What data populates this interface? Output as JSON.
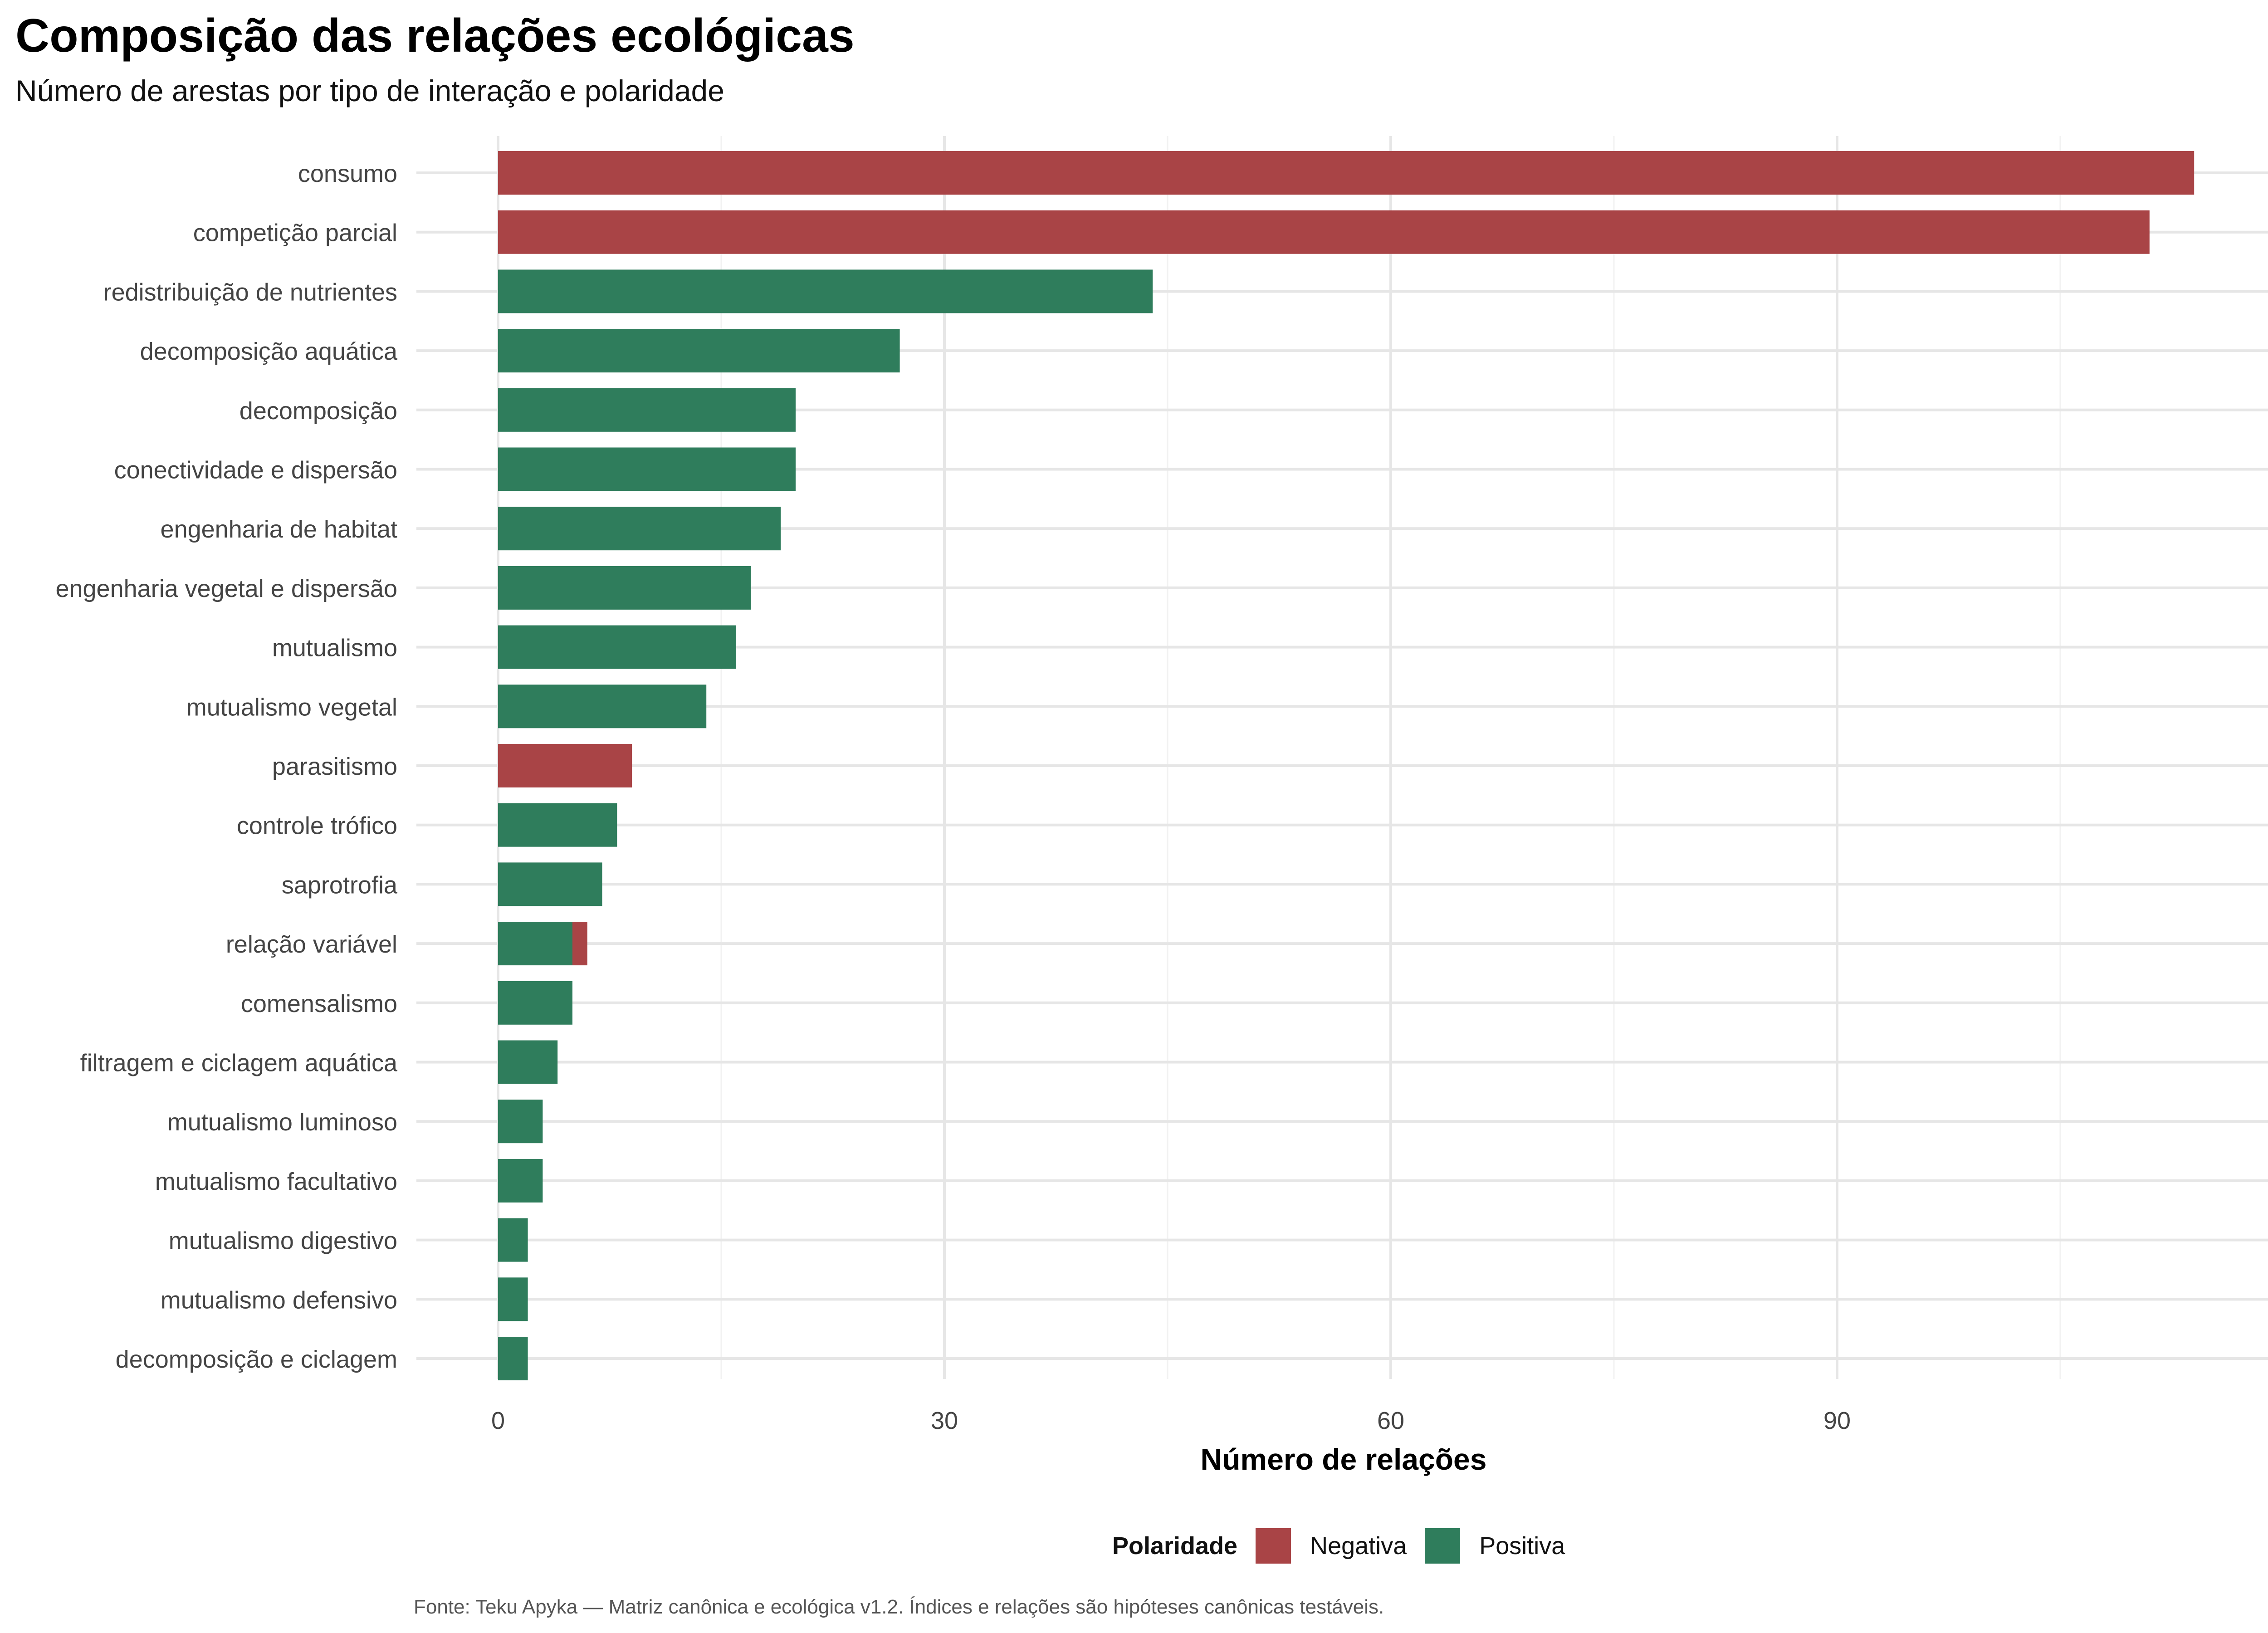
{
  "title": "Composição das relações ecológicas",
  "subtitle": "Número de arestas por tipo de interação e polaridade",
  "caption": "Fonte: Teku Apyka — Matriz canônica e ecológica v1.2. Índices e relações são hipóteses canônicas testáveis.",
  "legend": {
    "title": "Polaridade",
    "items": [
      {
        "label": "Negativa",
        "color": "#a94446"
      },
      {
        "label": "Positiva",
        "color": "#2f7d5c"
      }
    ]
  },
  "chart_data": {
    "type": "bar",
    "orientation": "horizontal",
    "stacked": true,
    "xlabel": "Número de relações",
    "ylabel": "",
    "xlim": [
      -4,
      119
    ],
    "xticks": [
      0,
      30,
      60,
      90
    ],
    "grid": true,
    "legend_position": "bottom",
    "categories": [
      "consumo",
      "competição parcial",
      "redistribuição de nutrientes",
      "decomposição aquática",
      "decomposição",
      "conectividade e dispersão",
      "engenharia de habitat",
      "engenharia vegetal e dispersão",
      "mutualismo",
      "mutualismo vegetal",
      "parasitismo",
      "controle trófico",
      "saprotrofia",
      "relação variável",
      "comensalismo",
      "filtragem e ciclagem aquática",
      "mutualismo luminoso",
      "mutualismo facultativo",
      "mutualismo digestivo",
      "mutualismo defensivo",
      "decomposição e ciclagem"
    ],
    "series": [
      {
        "name": "Positiva",
        "color": "#2f7d5c",
        "values": [
          0,
          0,
          44,
          27,
          20,
          20,
          19,
          17,
          16,
          14,
          0,
          8,
          7,
          5,
          5,
          4,
          3,
          3,
          2,
          2,
          2
        ]
      },
      {
        "name": "Negativa",
        "color": "#a94446",
        "values": [
          114,
          111,
          0,
          0,
          0,
          0,
          0,
          0,
          0,
          0,
          9,
          0,
          0,
          1,
          0,
          0,
          0,
          0,
          0,
          0,
          0
        ]
      }
    ]
  }
}
